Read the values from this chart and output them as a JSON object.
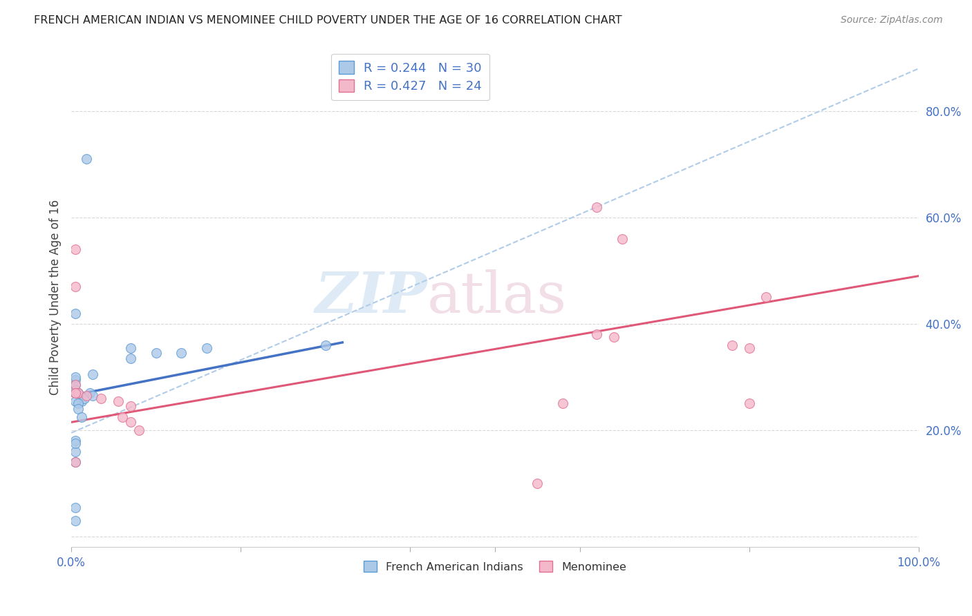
{
  "title": "FRENCH AMERICAN INDIAN VS MENOMINEE CHILD POVERTY UNDER THE AGE OF 16 CORRELATION CHART",
  "source": "Source: ZipAtlas.com",
  "ylabel": "Child Poverty Under the Age of 16",
  "xlim": [
    0,
    1.0
  ],
  "ylim": [
    -0.02,
    0.92
  ],
  "legend_r1": "0.244",
  "legend_n1": "30",
  "legend_r2": "0.427",
  "legend_n2": "24",
  "blue_scatter_x": [
    0.018,
    0.005,
    0.005,
    0.005,
    0.008,
    0.01,
    0.012,
    0.015,
    0.022,
    0.025,
    0.025,
    0.005,
    0.005,
    0.005,
    0.008,
    0.008,
    0.012,
    0.07,
    0.07,
    0.1,
    0.13,
    0.16,
    0.005,
    0.005,
    0.005,
    0.3,
    0.005,
    0.005,
    0.005,
    0.005
  ],
  "blue_scatter_y": [
    0.71,
    0.295,
    0.285,
    0.275,
    0.27,
    0.265,
    0.255,
    0.26,
    0.27,
    0.265,
    0.305,
    0.3,
    0.27,
    0.255,
    0.25,
    0.24,
    0.225,
    0.355,
    0.335,
    0.345,
    0.345,
    0.355,
    0.42,
    0.16,
    0.14,
    0.36,
    0.055,
    0.03,
    0.18,
    0.175
  ],
  "pink_scatter_x": [
    0.005,
    0.005,
    0.005,
    0.005,
    0.008,
    0.018,
    0.035,
    0.055,
    0.06,
    0.07,
    0.07,
    0.08,
    0.55,
    0.58,
    0.62,
    0.62,
    0.64,
    0.65,
    0.78,
    0.8,
    0.8,
    0.82,
    0.005,
    0.005
  ],
  "pink_scatter_y": [
    0.54,
    0.47,
    0.285,
    0.27,
    0.27,
    0.265,
    0.26,
    0.255,
    0.225,
    0.245,
    0.215,
    0.2,
    0.1,
    0.25,
    0.62,
    0.38,
    0.375,
    0.56,
    0.36,
    0.355,
    0.25,
    0.45,
    0.14,
    0.27
  ],
  "blue_line_x": [
    0.0,
    0.32
  ],
  "blue_line_y": [
    0.265,
    0.365
  ],
  "pink_line_x": [
    0.0,
    1.0
  ],
  "pink_line_y": [
    0.215,
    0.49
  ],
  "dashed_line_x": [
    0.0,
    1.0
  ],
  "dashed_line_y": [
    0.195,
    0.88
  ],
  "blue_fill_color": "#adc9e8",
  "blue_edge_color": "#5b9bd5",
  "blue_line_color": "#4472c4",
  "pink_fill_color": "#f4b8cb",
  "pink_edge_color": "#e07090",
  "pink_line_color": "#e05878",
  "dashed_color": "#b0cce8",
  "marker_size": 100,
  "watermark_zip": "ZIP",
  "watermark_atlas": "atlas",
  "background_color": "#ffffff",
  "grid_color": "#d8d8d8",
  "tick_label_color": "#4472c4",
  "ylabel_color": "#444444",
  "title_color": "#222222",
  "source_color": "#888888"
}
